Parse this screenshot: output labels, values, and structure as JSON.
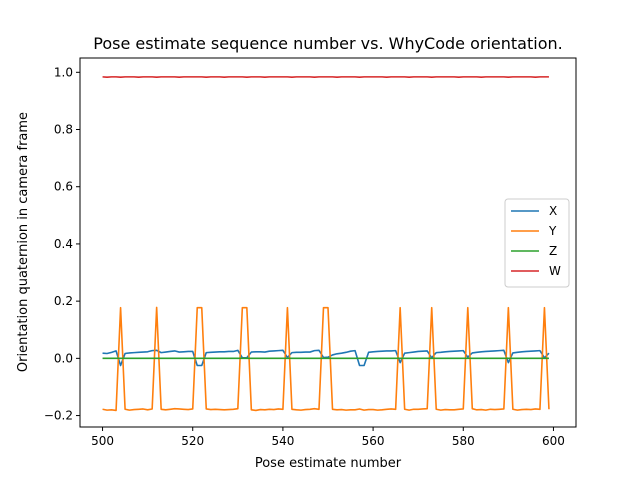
{
  "chart_data": {
    "type": "line",
    "title": "Pose estimate sequence number vs. WhyCode orientation.",
    "xlabel": "Pose estimate number",
    "ylabel": "Orientation quaternion in camera frame",
    "xlim": [
      495,
      605
    ],
    "ylim": [
      -0.24,
      1.05
    ],
    "x_ticks": [
      500,
      520,
      540,
      560,
      580,
      600
    ],
    "y_ticks": [
      -0.2,
      0.0,
      0.2,
      0.4,
      0.6,
      0.8,
      1.0
    ],
    "x_tick_labels": [
      "500",
      "520",
      "540",
      "560",
      "580",
      "600"
    ],
    "y_tick_labels": [
      "−0.2",
      "0.0",
      "0.2",
      "0.4",
      "0.6",
      "0.8",
      "1.0"
    ],
    "legend_position": "center-right",
    "x": [
      500,
      501,
      502,
      503,
      504,
      505,
      506,
      507,
      508,
      509,
      510,
      511,
      512,
      513,
      514,
      515,
      516,
      517,
      518,
      519,
      520,
      521,
      522,
      523,
      524,
      525,
      526,
      527,
      528,
      529,
      530,
      531,
      532,
      533,
      534,
      535,
      536,
      537,
      538,
      539,
      540,
      541,
      542,
      543,
      544,
      545,
      546,
      547,
      548,
      549,
      550,
      551,
      552,
      553,
      554,
      555,
      556,
      557,
      558,
      559,
      560,
      561,
      562,
      563,
      564,
      565,
      566,
      567,
      568,
      569,
      570,
      571,
      572,
      573,
      574,
      575,
      576,
      577,
      578,
      579,
      580,
      581,
      582,
      583,
      584,
      585,
      586,
      587,
      588,
      589,
      590,
      591,
      592,
      593,
      594,
      595,
      596,
      597,
      598,
      599
    ],
    "series": [
      {
        "name": "X",
        "color": "#1f77b4",
        "values": [
          0.018,
          0.017,
          0.021,
          0.026,
          -0.025,
          0.017,
          0.019,
          0.02,
          0.021,
          0.022,
          0.023,
          0.027,
          0.028,
          0.02,
          0.022,
          0.024,
          0.026,
          0.022,
          0.023,
          0.024,
          0.024,
          -0.025,
          -0.025,
          0.02,
          0.021,
          0.022,
          0.023,
          0.023,
          0.024,
          0.024,
          0.028,
          0.002,
          0.002,
          0.022,
          0.023,
          0.023,
          0.022,
          0.025,
          0.026,
          0.027,
          0.028,
          0.003,
          0.02,
          0.021,
          0.021,
          0.022,
          0.022,
          0.027,
          0.028,
          0.003,
          0.004,
          0.012,
          0.016,
          0.018,
          0.021,
          0.025,
          0.027,
          -0.025,
          -0.025,
          0.021,
          0.023,
          0.024,
          0.025,
          0.026,
          0.026,
          0.027,
          -0.015,
          0.018,
          0.02,
          0.022,
          0.024,
          0.025,
          0.026,
          0.002,
          0.02,
          0.021,
          0.023,
          0.024,
          0.025,
          0.026,
          0.027,
          0.004,
          0.019,
          0.021,
          0.023,
          0.024,
          0.025,
          0.026,
          0.027,
          0.028,
          -0.015,
          0.019,
          0.021,
          0.023,
          0.024,
          0.025,
          0.026,
          0.027,
          0.002,
          0.018
        ]
      },
      {
        "name": "Y",
        "color": "#ff7f0e",
        "values": [
          -0.178,
          -0.181,
          -0.18,
          -0.182,
          0.177,
          -0.178,
          -0.181,
          -0.179,
          -0.178,
          -0.177,
          -0.18,
          -0.177,
          0.178,
          -0.178,
          -0.18,
          -0.178,
          -0.176,
          -0.177,
          -0.178,
          -0.179,
          -0.177,
          0.177,
          0.177,
          -0.177,
          -0.179,
          -0.178,
          -0.179,
          -0.18,
          -0.179,
          -0.178,
          -0.176,
          0.177,
          0.177,
          -0.18,
          -0.182,
          -0.179,
          -0.18,
          -0.178,
          -0.179,
          -0.177,
          -0.178,
          0.177,
          -0.178,
          -0.18,
          -0.181,
          -0.179,
          -0.178,
          -0.176,
          -0.178,
          0.177,
          0.177,
          -0.178,
          -0.18,
          -0.179,
          -0.181,
          -0.18,
          -0.18,
          -0.177,
          -0.181,
          -0.179,
          -0.179,
          -0.181,
          -0.18,
          -0.178,
          -0.177,
          -0.178,
          0.177,
          -0.178,
          -0.181,
          -0.178,
          -0.178,
          -0.177,
          -0.176,
          0.177,
          -0.178,
          -0.181,
          -0.179,
          -0.18,
          -0.18,
          -0.178,
          -0.177,
          0.177,
          -0.176,
          -0.18,
          -0.179,
          -0.181,
          -0.178,
          -0.179,
          -0.178,
          -0.177,
          0.177,
          -0.178,
          -0.181,
          -0.179,
          -0.178,
          -0.179,
          -0.177,
          -0.178,
          0.177,
          -0.178
        ]
      },
      {
        "name": "Z",
        "color": "#2ca02c",
        "values": [
          0,
          0,
          0,
          0,
          0,
          0,
          0,
          0,
          0,
          0,
          0,
          0,
          0,
          0,
          0,
          0,
          0,
          0,
          0,
          0,
          0,
          0,
          0,
          0,
          0,
          0,
          0,
          0,
          0,
          0,
          0,
          0,
          0,
          0,
          0,
          0,
          0,
          0,
          0,
          0,
          0,
          0,
          0,
          0,
          0,
          0,
          0,
          0,
          0,
          0,
          0,
          0,
          0,
          0,
          0,
          0,
          0,
          0,
          0,
          0,
          0,
          0,
          0,
          0,
          0,
          0,
          0,
          0,
          0,
          0,
          0,
          0,
          0,
          0,
          0,
          0,
          0,
          0,
          0,
          0,
          0,
          0,
          0,
          0,
          0,
          0,
          0,
          0,
          0,
          0,
          0,
          0,
          0,
          0,
          0,
          0,
          0,
          0,
          0,
          0
        ]
      },
      {
        "name": "W",
        "color": "#d62728",
        "values": [
          0.984,
          0.983,
          0.984,
          0.984,
          0.983,
          0.984,
          0.984,
          0.984,
          0.983,
          0.984,
          0.984,
          0.984,
          0.983,
          0.984,
          0.984,
          0.984,
          0.984,
          0.983,
          0.984,
          0.984,
          0.984,
          0.984,
          0.984,
          0.983,
          0.984,
          0.984,
          0.984,
          0.983,
          0.984,
          0.984,
          0.984,
          0.984,
          0.983,
          0.984,
          0.984,
          0.984,
          0.983,
          0.984,
          0.984,
          0.984,
          0.984,
          0.984,
          0.983,
          0.984,
          0.984,
          0.984,
          0.984,
          0.983,
          0.984,
          0.984,
          0.984,
          0.984,
          0.983,
          0.984,
          0.984,
          0.984,
          0.984,
          0.983,
          0.984,
          0.984,
          0.984,
          0.984,
          0.984,
          0.983,
          0.984,
          0.984,
          0.984,
          0.984,
          0.983,
          0.984,
          0.984,
          0.984,
          0.984,
          0.983,
          0.984,
          0.984,
          0.984,
          0.984,
          0.984,
          0.983,
          0.984,
          0.984,
          0.984,
          0.984,
          0.983,
          0.984,
          0.984,
          0.984,
          0.984,
          0.984,
          0.983,
          0.984,
          0.984,
          0.984,
          0.984,
          0.984,
          0.983,
          0.984,
          0.984,
          0.984
        ]
      }
    ]
  }
}
